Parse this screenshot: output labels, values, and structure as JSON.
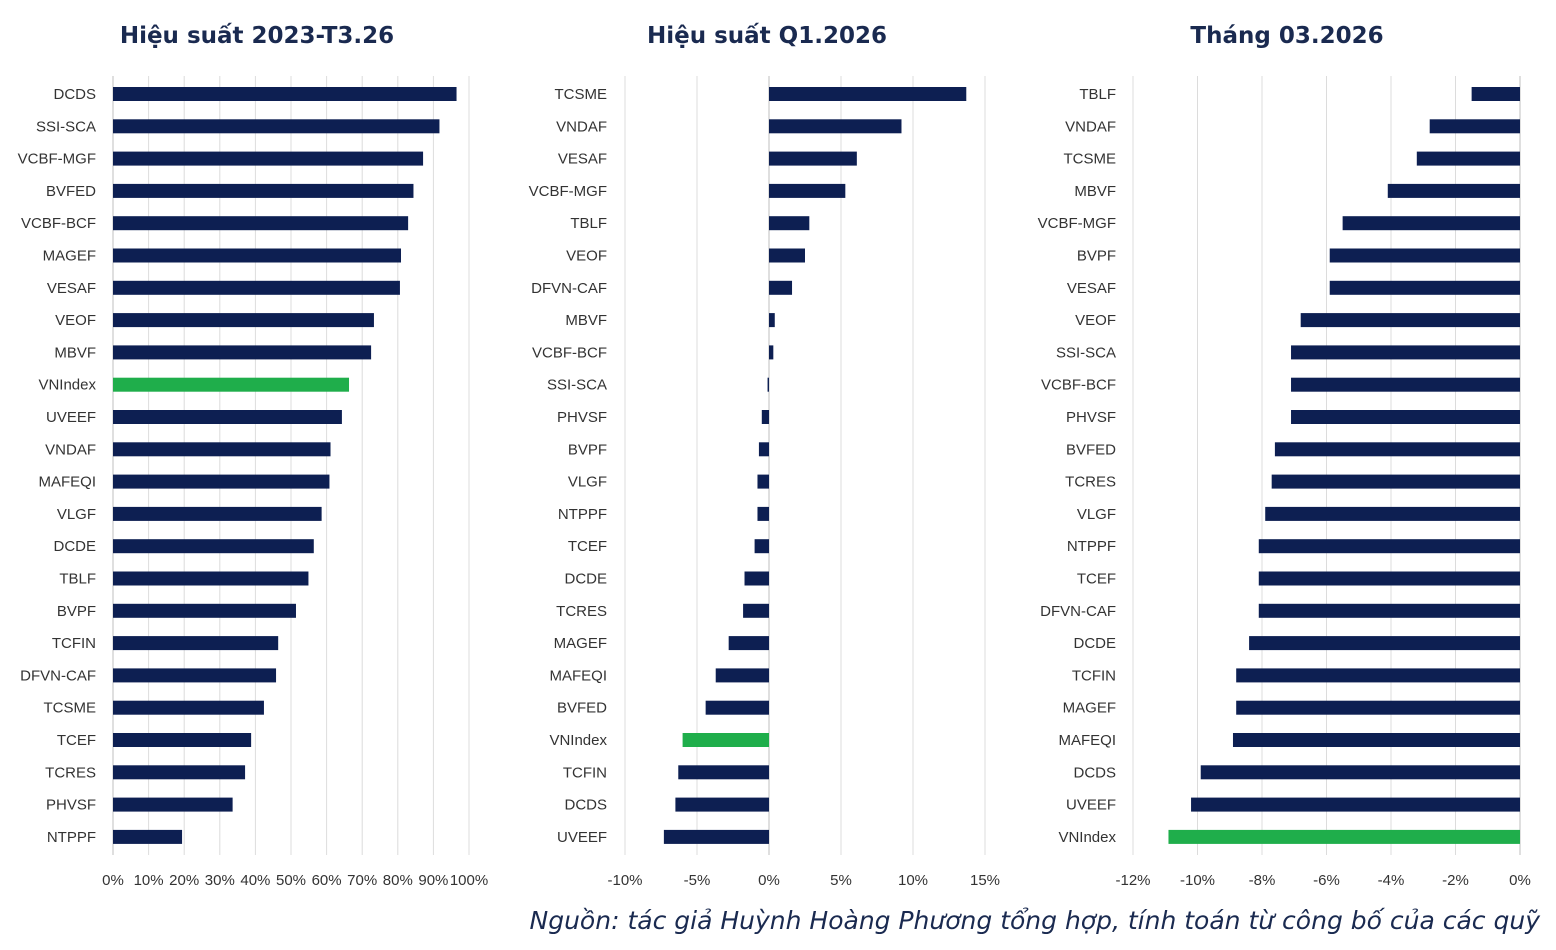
{
  "colors": {
    "bar": "#0d1f52",
    "highlight": "#1fae4b"
  },
  "chart_data": [
    {
      "type": "bar",
      "orientation": "horizontal",
      "title": "Hiệu suất 2023-T3.26",
      "categories": [
        "DCDS",
        "SSI-SCA",
        "VCBF-MGF",
        "BVFED",
        "VCBF-BCF",
        "MAGEF",
        "VESAF",
        "VEOF",
        "MBVF",
        "VNIndex",
        "UVEEF",
        "VNDAF",
        "MAFEQI",
        "VLGF",
        "DCDE",
        "TBLF",
        "BVPF",
        "TCFIN",
        "DFVN-CAF",
        "TCSME",
        "TCEF",
        "TCRES",
        "PHVSF",
        "NTPPF"
      ],
      "values": [
        96.5,
        91.7,
        87.1,
        84.4,
        82.9,
        80.9,
        80.6,
        73.3,
        72.5,
        66.3,
        64.3,
        61.1,
        60.8,
        58.6,
        56.4,
        54.9,
        51.4,
        46.4,
        45.8,
        42.4,
        38.8,
        37.1,
        33.6,
        19.4
      ],
      "highlight": "VNIndex",
      "xlim": [
        0,
        100
      ],
      "ticks": [
        0,
        10,
        20,
        30,
        40,
        50,
        60,
        70,
        80,
        90,
        100
      ],
      "tick_labels": [
        "0%",
        "10%",
        "20%",
        "30%",
        "40%",
        "50%",
        "60%",
        "70%",
        "80%",
        "90%",
        "100%"
      ],
      "xlabel": "",
      "ylabel": ""
    },
    {
      "type": "bar",
      "orientation": "horizontal",
      "title": "Hiệu suất Q1.2026",
      "categories": [
        "TCSME",
        "VNDAF",
        "VESAF",
        "VCBF-MGF",
        "TBLF",
        "VEOF",
        "DFVN-CAF",
        "MBVF",
        "VCBF-BCF",
        "SSI-SCA",
        "PHVSF",
        "BVPF",
        "VLGF",
        "NTPPF",
        "TCEF",
        "DCDE",
        "TCRES",
        "MAGEF",
        "MAFEQI",
        "BVFED",
        "VNIndex",
        "TCFIN",
        "DCDS",
        "UVEEF"
      ],
      "values": [
        13.7,
        9.2,
        6.1,
        5.3,
        2.8,
        2.5,
        1.6,
        0.4,
        0.3,
        -0.1,
        -0.5,
        -0.7,
        -0.8,
        -0.8,
        -1.0,
        -1.7,
        -1.8,
        -2.8,
        -3.7,
        -4.4,
        -6.0,
        -6.3,
        -6.5,
        -7.3
      ],
      "highlight": "VNIndex",
      "xlim": [
        -10,
        15
      ],
      "ticks": [
        -10,
        -5,
        0,
        5,
        10,
        15
      ],
      "tick_labels": [
        "-10%",
        "-5%",
        "0%",
        "5%",
        "10%",
        "15%"
      ],
      "xlabel": "",
      "ylabel": ""
    },
    {
      "type": "bar",
      "orientation": "horizontal",
      "title": "Tháng 03.2026",
      "categories": [
        "TBLF",
        "VNDAF",
        "TCSME",
        "MBVF",
        "VCBF-MGF",
        "BVPF",
        "VESAF",
        "VEOF",
        "SSI-SCA",
        "VCBF-BCF",
        "PHVSF",
        "BVFED",
        "TCRES",
        "VLGF",
        "NTPPF",
        "TCEF",
        "DFVN-CAF",
        "DCDE",
        "TCFIN",
        "MAGEF",
        "MAFEQI",
        "DCDS",
        "UVEEF",
        "VNIndex"
      ],
      "values": [
        -1.5,
        -2.8,
        -3.2,
        -4.1,
        -5.5,
        -5.9,
        -5.9,
        -6.8,
        -7.1,
        -7.1,
        -7.1,
        -7.6,
        -7.7,
        -7.9,
        -8.1,
        -8.1,
        -8.1,
        -8.4,
        -8.8,
        -8.8,
        -8.9,
        -9.9,
        -10.2,
        -10.9
      ],
      "highlight": "VNIndex",
      "xlim": [
        -12,
        0
      ],
      "ticks": [
        -12,
        -10,
        -8,
        -6,
        -4,
        -2,
        0
      ],
      "tick_labels": [
        "-12%",
        "-10%",
        "-8%",
        "-6%",
        "-4%",
        "-2%",
        "0%"
      ],
      "xlabel": "",
      "ylabel": ""
    }
  ],
  "source_note": "Nguồn: tác giả Huỳnh Hoàng Phương tổng hợp, tính toán từ công bố của các quỹ"
}
